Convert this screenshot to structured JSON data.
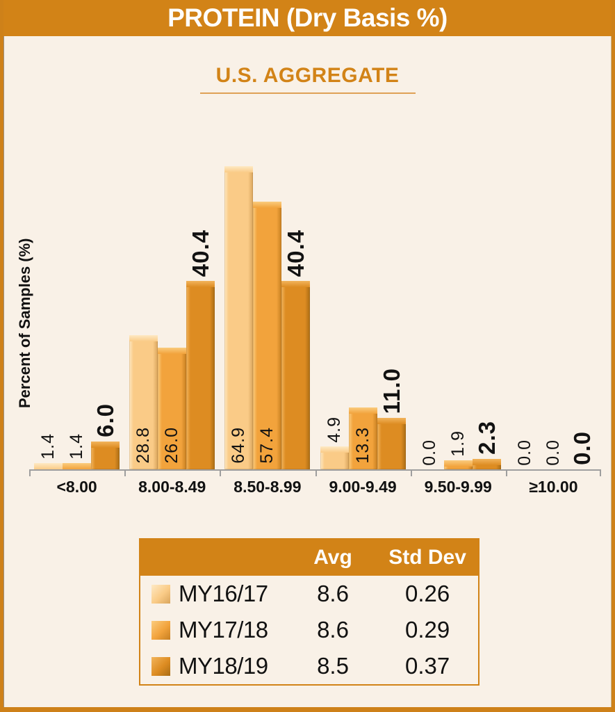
{
  "header": {
    "title": "PROTEIN (Dry Basis %)"
  },
  "subtitle": "U.S. AGGREGATE",
  "chart_data": {
    "type": "bar",
    "title": "PROTEIN (Dry Basis %)",
    "subtitle": "U.S. AGGREGATE",
    "ylabel": "Percent of Samples (%)",
    "xlabel": "",
    "categories": [
      "<8.00",
      "8.00-8.49",
      "8.50-8.99",
      "9.00-9.49",
      "9.50-9.99",
      "≥10.00"
    ],
    "series": [
      {
        "name": "MY16/17",
        "color": "#FACB87",
        "color_light": "#FEE9C4",
        "color_dark": "#D9A55C",
        "values": [
          1.4,
          28.8,
          64.9,
          4.9,
          0.0,
          0.0
        ]
      },
      {
        "name": "MY17/18",
        "color": "#F2A33C",
        "color_light": "#FBCC7E",
        "color_dark": "#C77F21",
        "values": [
          1.4,
          26.0,
          57.4,
          13.3,
          1.9,
          0.0
        ]
      },
      {
        "name": "MY18/19",
        "color": "#DD8C22",
        "color_light": "#F2B45C",
        "color_dark": "#A96C14",
        "values": [
          6.0,
          40.4,
          40.4,
          11.0,
          2.3,
          0.0
        ]
      }
    ],
    "ylim": [
      0,
      70
    ],
    "grid": false,
    "data_labels": true,
    "legend_position": "bottom-table"
  },
  "legend_table": {
    "columns": [
      "",
      "Avg",
      "Std Dev"
    ],
    "rows": [
      {
        "name": "MY16/17",
        "avg": "8.6",
        "std": "0.26"
      },
      {
        "name": "MY17/18",
        "avg": "8.6",
        "std": "0.29"
      },
      {
        "name": "MY18/19",
        "avg": "8.5",
        "std": "0.37"
      }
    ]
  },
  "colors": {
    "accent": "#D28317",
    "background": "#F9F1E7",
    "axis": "#9E9E9E",
    "underline": "#DFA155",
    "title_text": "#FEFDFB",
    "label_text": "#111111"
  }
}
